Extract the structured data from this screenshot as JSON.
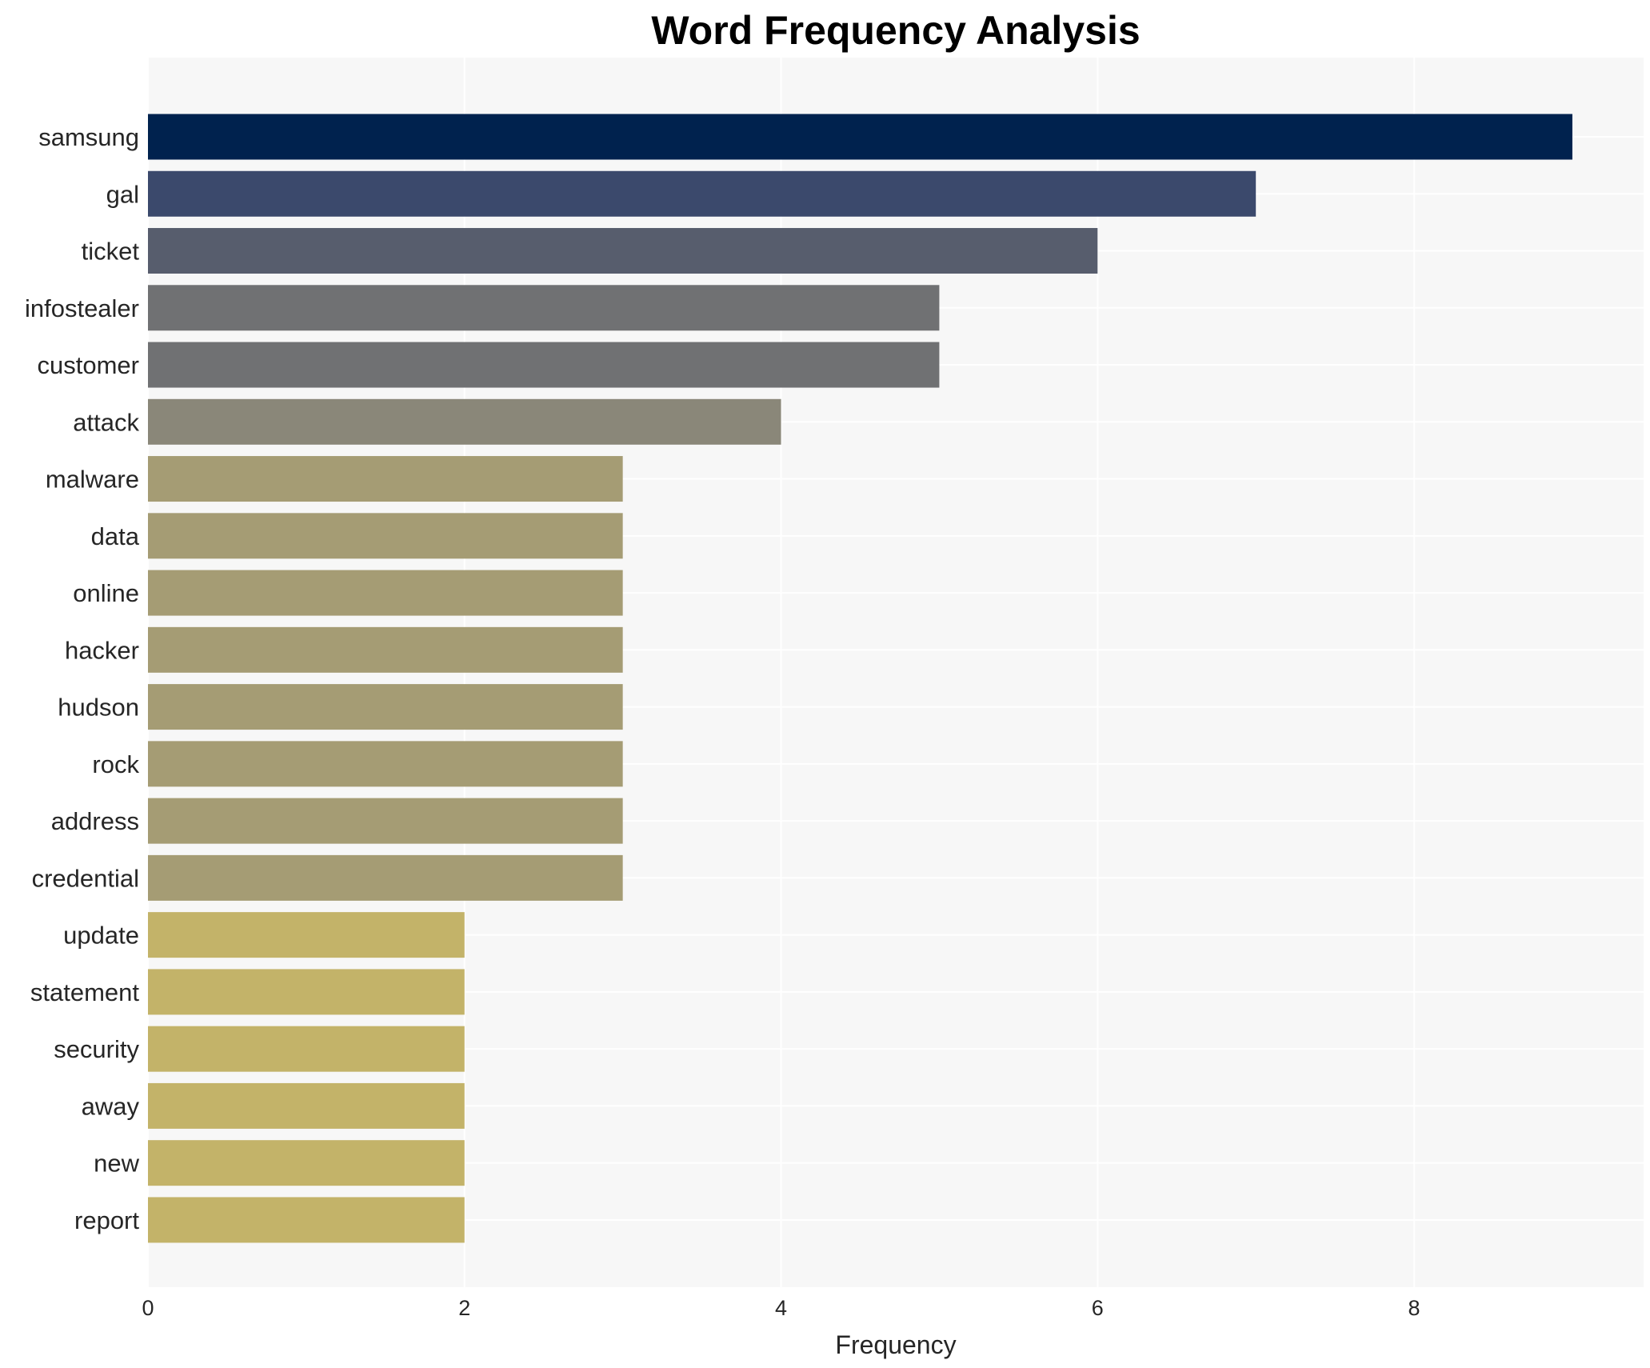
{
  "chart_data": {
    "type": "bar",
    "orientation": "horizontal",
    "title": "Word Frequency Analysis",
    "xlabel": "Frequency",
    "ylabel": "",
    "xlim": [
      0,
      9.45
    ],
    "xticks": [
      0,
      2,
      4,
      6,
      8
    ],
    "grid": true,
    "categories": [
      "samsung",
      "gal",
      "ticket",
      "infostealer",
      "customer",
      "attack",
      "malware",
      "data",
      "online",
      "hacker",
      "hudson",
      "rock",
      "address",
      "credential",
      "update",
      "statement",
      "security",
      "away",
      "new",
      "report"
    ],
    "values": [
      9,
      7,
      6,
      5,
      5,
      4,
      3,
      3,
      3,
      3,
      3,
      3,
      3,
      3,
      2,
      2,
      2,
      2,
      2,
      2
    ],
    "colors": [
      "#00224e",
      "#3b496c",
      "#575d6d",
      "#707173",
      "#707173",
      "#8a8779",
      "#a59c74",
      "#a59c74",
      "#a59c74",
      "#a59c74",
      "#a59c74",
      "#a59c74",
      "#a59c74",
      "#a59c74",
      "#c3b369",
      "#c3b369",
      "#c3b369",
      "#c3b369",
      "#c3b369",
      "#c3b369"
    ],
    "plot_background": "#f7f7f7"
  }
}
